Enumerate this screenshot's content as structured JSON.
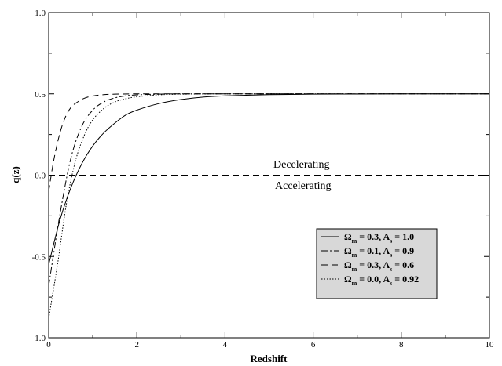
{
  "chart_data": {
    "type": "line",
    "title": "",
    "xlabel": "Redshift",
    "ylabel": "q(z)",
    "xlim": [
      0,
      10
    ],
    "ylim": [
      -1.0,
      1.0
    ],
    "x_ticks": [
      "0",
      "2",
      "4",
      "6",
      "8",
      "10"
    ],
    "y_ticks": [
      "-1.0",
      "-0.5",
      "0.0",
      "0.5",
      "1.0"
    ],
    "grid": false,
    "legend_position": "bottom-right",
    "annotations": [
      "Decelerating",
      "Accelerating"
    ],
    "reference_line": {
      "y": 0.0,
      "style": "dashed"
    },
    "series": [
      {
        "name": "Ω_m = 0.3, A_s = 1.0",
        "legend": {
          "omega_sym": "Ω",
          "omega_sub": "m",
          "omega_val": " = 0.3, A",
          "as_sub": "s",
          "as_val": " = 1.0"
        },
        "style": "solid",
        "x": [
          0,
          0.25,
          0.5,
          0.75,
          1.0,
          1.25,
          1.5,
          1.75,
          2.0,
          2.5,
          3.0,
          3.5,
          4.0,
          5.0,
          6.0,
          7.0,
          8.0,
          10.0
        ],
        "y": [
          -0.55,
          -0.28,
          -0.08,
          0.07,
          0.18,
          0.26,
          0.32,
          0.37,
          0.4,
          0.44,
          0.465,
          0.48,
          0.488,
          0.495,
          0.498,
          0.499,
          0.5,
          0.5
        ]
      },
      {
        "name": "Ω_m = 0.1, A_s = 0.9",
        "legend": {
          "omega_sym": "Ω",
          "omega_sub": "m",
          "omega_val": " = 0.1, A",
          "as_sub": "s",
          "as_val": " = 0.9"
        },
        "style": "dashdot",
        "x": [
          0,
          0.25,
          0.5,
          0.75,
          1.0,
          1.25,
          1.5,
          1.75,
          2.0,
          2.5,
          3.0,
          4.0,
          6.0,
          10.0
        ],
        "y": [
          -0.68,
          -0.25,
          0.1,
          0.3,
          0.4,
          0.45,
          0.475,
          0.488,
          0.494,
          0.498,
          0.5,
          0.5,
          0.5,
          0.5
        ]
      },
      {
        "name": "Ω_m = 0.3, A_s = 0.6",
        "legend": {
          "omega_sym": "Ω",
          "omega_sub": "m",
          "omega_val": " = 0.3, A",
          "as_sub": "s",
          "as_val": " = 0.6"
        },
        "style": "dashed",
        "x": [
          0,
          0.1,
          0.2,
          0.3,
          0.4,
          0.5,
          0.6,
          0.8,
          1.0,
          1.25,
          1.5,
          2.0,
          3.0,
          10.0
        ],
        "y": [
          -0.1,
          0.07,
          0.2,
          0.3,
          0.37,
          0.415,
          0.44,
          0.472,
          0.487,
          0.495,
          0.498,
          0.5,
          0.5,
          0.5
        ]
      },
      {
        "name": "Ω_m = 0.0, A_s = 0.92",
        "legend": {
          "omega_sym": "Ω",
          "omega_sub": "m",
          "omega_val": " = 0.0, A",
          "as_sub": "s",
          "as_val": " = 0.92"
        },
        "style": "dotted",
        "x": [
          0,
          0.2,
          0.4,
          0.6,
          0.8,
          1.0,
          1.25,
          1.5,
          1.75,
          2.0,
          2.5,
          3.0,
          4.0,
          6.0,
          10.0
        ],
        "y": [
          -0.88,
          -0.55,
          -0.18,
          0.08,
          0.24,
          0.34,
          0.41,
          0.45,
          0.47,
          0.482,
          0.494,
          0.498,
          0.5,
          0.5,
          0.5
        ]
      }
    ]
  }
}
